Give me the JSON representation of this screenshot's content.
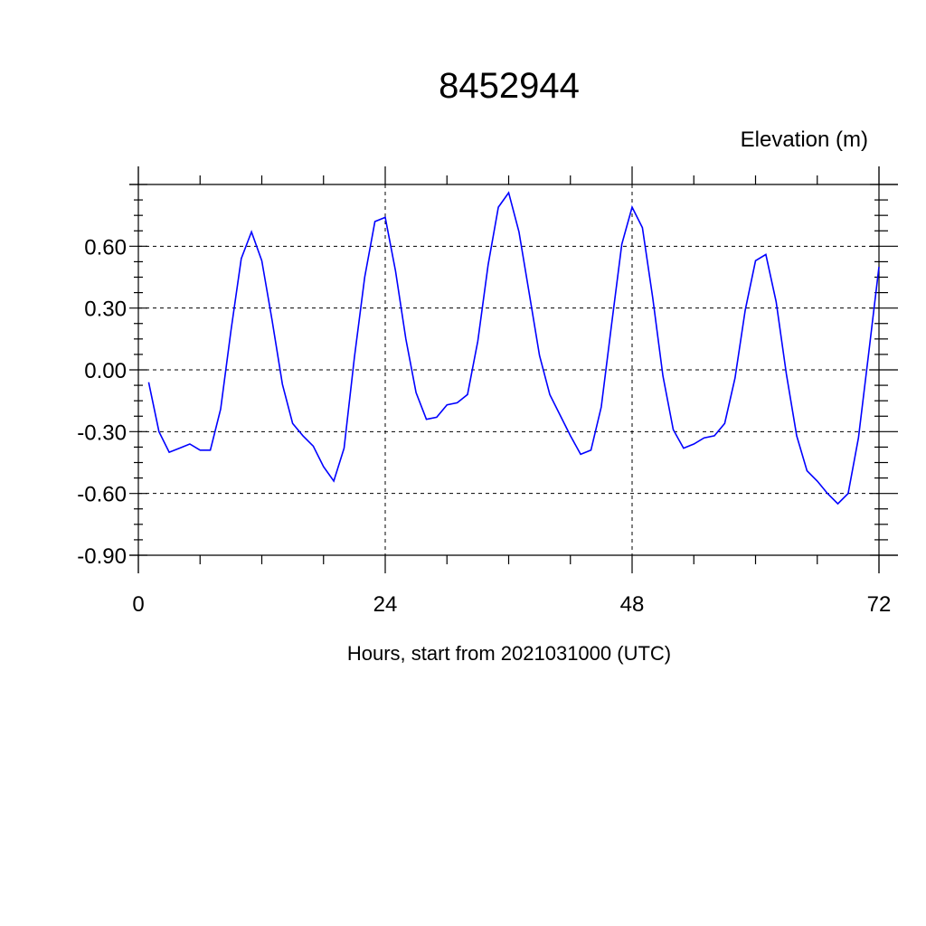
{
  "chart_data": {
    "type": "line",
    "title": "8452944",
    "ylabel": "Elevation (m)",
    "xlabel": "Hours, start from 2021031000 (UTC)",
    "xlim": [
      0,
      72
    ],
    "ylim": [
      -0.9,
      0.9
    ],
    "x_ticks": [
      0,
      24,
      48,
      72
    ],
    "x_tick_labels": [
      "0",
      "24",
      "48",
      "72"
    ],
    "y_ticks": [
      -0.9,
      -0.6,
      -0.3,
      0.0,
      0.3,
      0.6
    ],
    "y_tick_labels": [
      "-0.90",
      "-0.60",
      "-0.30",
      "0.00",
      "0.30",
      "0.60"
    ],
    "grid": "dashed at major ticks",
    "line_color": "#0000ff",
    "series": [
      {
        "x": [
          1,
          2,
          3,
          4,
          5,
          6,
          7,
          8,
          9,
          10,
          11,
          12,
          13,
          14,
          15,
          16,
          17,
          18,
          19,
          20,
          21,
          22,
          23,
          24,
          25,
          26,
          27,
          28,
          29,
          30,
          31,
          32,
          33,
          34,
          35,
          36,
          37,
          38,
          39,
          40,
          41,
          42,
          43,
          44,
          45,
          46,
          47,
          48,
          49,
          50,
          51,
          52,
          53,
          54,
          55,
          56,
          57,
          58,
          59,
          60,
          61,
          62,
          63,
          64,
          65,
          66,
          67,
          68,
          69,
          70,
          71,
          72
        ],
        "values": [
          -0.06,
          -0.3,
          -0.4,
          -0.38,
          -0.36,
          -0.39,
          -0.39,
          -0.19,
          0.19,
          0.54,
          0.67,
          0.53,
          0.24,
          -0.07,
          -0.26,
          -0.32,
          -0.37,
          -0.47,
          -0.54,
          -0.38,
          0.06,
          0.45,
          0.72,
          0.74,
          0.48,
          0.15,
          -0.11,
          -0.24,
          -0.23,
          -0.17,
          -0.16,
          -0.12,
          0.14,
          0.51,
          0.79,
          0.86,
          0.67,
          0.37,
          0.07,
          -0.12,
          -0.22,
          -0.32,
          -0.41,
          -0.39,
          -0.18,
          0.22,
          0.61,
          0.79,
          0.69,
          0.35,
          -0.03,
          -0.29,
          -0.38,
          -0.36,
          -0.33,
          -0.32,
          -0.26,
          -0.04,
          0.29,
          0.53,
          0.56,
          0.33,
          -0.02,
          -0.32,
          -0.49,
          -0.54,
          -0.6,
          -0.65,
          -0.6,
          -0.33,
          0.08,
          0.5
        ]
      }
    ]
  }
}
